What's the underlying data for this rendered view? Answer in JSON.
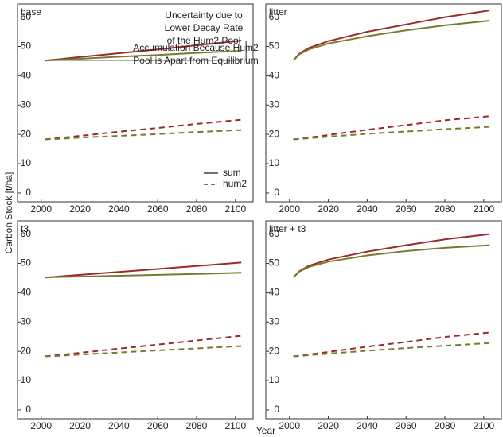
{
  "ylabel": "Carbon Stock [t/ha]",
  "xlabel": "Year",
  "chart_data": [
    {
      "type": "line",
      "title": "base",
      "x": [
        2002,
        2005,
        2010,
        2020,
        2040,
        2060,
        2080,
        2103
      ],
      "xlim": [
        1996,
        2114
      ],
      "xticks": [
        2000,
        2020,
        2040,
        2060,
        2080,
        2100
      ],
      "ylim": [
        -3,
        64.5
      ],
      "yticks": [
        0,
        10,
        20,
        30,
        40,
        50,
        60
      ],
      "hline": 45.2,
      "hline_color": "#999999",
      "legend": [
        {
          "name": "sum",
          "dash": false
        },
        {
          "name": "hum2",
          "dash": true
        }
      ],
      "annotations": [
        {
          "text": "Uncertainty due to\nLower Decay Rate\nof the Hum2 Pool"
        },
        {
          "text": "Accumulation Because Hum2\nPool is Apart from Equilibrium"
        }
      ],
      "series": [
        {
          "color": "#9b2a2a",
          "dash": false,
          "values": [
            45.2,
            45.4,
            45.7,
            46.4,
            47.7,
            49.0,
            50.4,
            52.0
          ]
        },
        {
          "color": "#7a7a2e",
          "dash": false,
          "values": [
            45.2,
            45.3,
            45.5,
            45.8,
            46.5,
            47.1,
            47.8,
            48.5
          ]
        },
        {
          "color": "#9b2a2a",
          "dash": true,
          "values": [
            18.3,
            18.5,
            18.8,
            19.5,
            20.9,
            22.2,
            23.6,
            25.0
          ]
        },
        {
          "color": "#7a7a2e",
          "dash": true,
          "values": [
            18.3,
            18.4,
            18.5,
            18.9,
            19.5,
            20.1,
            20.8,
            21.5
          ]
        }
      ]
    },
    {
      "type": "line",
      "title": "litter",
      "x": [
        2002,
        2005,
        2010,
        2020,
        2040,
        2060,
        2080,
        2103
      ],
      "xlim": [
        1996,
        2114
      ],
      "xticks": [
        2000,
        2020,
        2040,
        2060,
        2080,
        2100
      ],
      "ylim": [
        -3,
        64.5
      ],
      "yticks": [
        0,
        10,
        20,
        30,
        40,
        50,
        60
      ],
      "series": [
        {
          "color": "#9b2a2a",
          "dash": false,
          "values": [
            45.2,
            47.5,
            49.5,
            51.8,
            55.0,
            57.5,
            60.0,
            62.3
          ]
        },
        {
          "color": "#7a7a2e",
          "dash": false,
          "values": [
            45.2,
            47.3,
            49.0,
            51.0,
            53.5,
            55.5,
            57.2,
            58.8
          ]
        },
        {
          "color": "#9b2a2a",
          "dash": true,
          "values": [
            18.3,
            18.5,
            18.9,
            19.8,
            21.6,
            23.2,
            24.8,
            26.2
          ]
        },
        {
          "color": "#7a7a2e",
          "dash": true,
          "values": [
            18.3,
            18.4,
            18.7,
            19.2,
            20.2,
            21.0,
            21.8,
            22.6
          ]
        }
      ]
    },
    {
      "type": "line",
      "title": "t3",
      "x": [
        2002,
        2005,
        2010,
        2020,
        2040,
        2060,
        2080,
        2103
      ],
      "xlim": [
        1996,
        2114
      ],
      "xticks": [
        2000,
        2020,
        2040,
        2060,
        2080,
        2100
      ],
      "ylim": [
        -3,
        64.5
      ],
      "yticks": [
        0,
        10,
        20,
        30,
        40,
        50,
        60
      ],
      "series": [
        {
          "color": "#9b2a2a",
          "dash": false,
          "values": [
            45.2,
            45.3,
            45.6,
            46.1,
            47.1,
            48.1,
            49.1,
            50.3
          ]
        },
        {
          "color": "#7a7a2e",
          "dash": false,
          "values": [
            45.2,
            45.3,
            45.4,
            45.5,
            45.8,
            46.1,
            46.4,
            46.8
          ]
        },
        {
          "color": "#9b2a2a",
          "dash": true,
          "values": [
            18.3,
            18.5,
            18.8,
            19.5,
            20.9,
            22.3,
            23.7,
            25.3
          ]
        },
        {
          "color": "#7a7a2e",
          "dash": true,
          "values": [
            18.3,
            18.4,
            18.5,
            18.9,
            19.6,
            20.3,
            21.0,
            21.8
          ]
        }
      ]
    },
    {
      "type": "line",
      "title": "litter + t3",
      "x": [
        2002,
        2005,
        2010,
        2020,
        2040,
        2060,
        2080,
        2103
      ],
      "xlim": [
        1996,
        2114
      ],
      "xticks": [
        2000,
        2020,
        2040,
        2060,
        2080,
        2100
      ],
      "ylim": [
        -3,
        64.5
      ],
      "yticks": [
        0,
        10,
        20,
        30,
        40,
        50,
        60
      ],
      "series": [
        {
          "color": "#9b2a2a",
          "dash": false,
          "values": [
            45.2,
            47.3,
            49.2,
            51.3,
            54.0,
            56.2,
            58.2,
            60.0
          ]
        },
        {
          "color": "#7a7a2e",
          "dash": false,
          "values": [
            45.2,
            47.2,
            48.8,
            50.6,
            52.7,
            54.2,
            55.3,
            56.2
          ]
        },
        {
          "color": "#9b2a2a",
          "dash": true,
          "values": [
            18.3,
            18.5,
            18.9,
            19.8,
            21.6,
            23.2,
            24.9,
            26.4
          ]
        },
        {
          "color": "#7a7a2e",
          "dash": true,
          "values": [
            18.3,
            18.4,
            18.7,
            19.2,
            20.2,
            21.1,
            21.9,
            22.8
          ]
        }
      ]
    }
  ]
}
